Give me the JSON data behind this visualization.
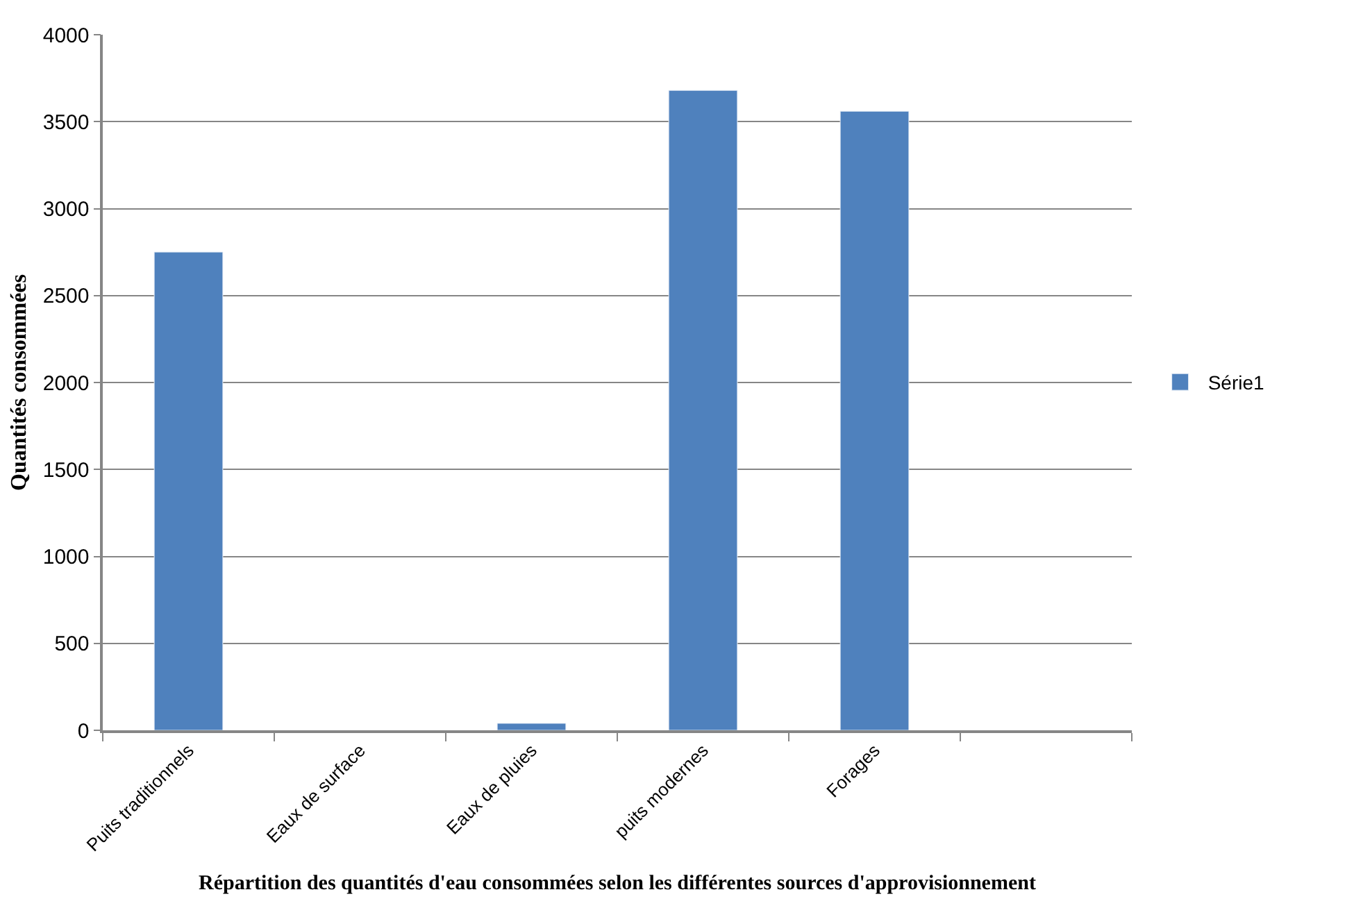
{
  "chart_data": {
    "type": "bar",
    "xlabel": "Répartition des quantités d'eau consommées selon les différentes sources d'approvisionnement",
    "ylabel": "Quantités consommées",
    "categories": [
      "Puits traditionnels",
      "Eaux de surface",
      "Eaux de pluies",
      "puits modernes",
      "Forages",
      null
    ],
    "series": [
      {
        "name": "Série1",
        "color": "#4f81bd",
        "values": [
          2750,
          null,
          40,
          3680,
          3560,
          null
        ]
      }
    ],
    "ylim": [
      0,
      4000
    ],
    "yticks": [
      0,
      500,
      1000,
      1500,
      2000,
      2500,
      3000,
      3500,
      4000
    ],
    "grid": "y",
    "legend": "right"
  }
}
